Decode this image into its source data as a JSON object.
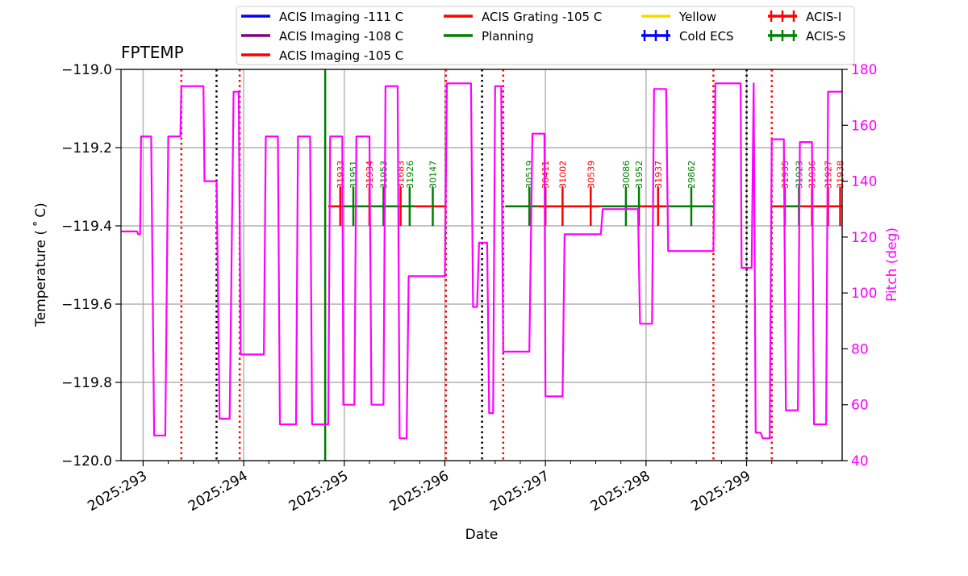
{
  "chart_data": {
    "type": "line",
    "title": "FPTEMP",
    "xlabel": "Date",
    "ylabel": "Temperature ($^\\circ$C)",
    "ylabel_display": "Temperature ( ˚ C)",
    "y2label": "Pitch (deg)",
    "xlim": [
      292.78,
      299.95
    ],
    "ylim": [
      -120.0,
      -119.0
    ],
    "y2lim": [
      40,
      180
    ],
    "x_ticks": [
      {
        "value": 293,
        "label": "2025:293"
      },
      {
        "value": 294,
        "label": "2025:294"
      },
      {
        "value": 295,
        "label": "2025:295"
      },
      {
        "value": 296,
        "label": "2025:296"
      },
      {
        "value": 297,
        "label": "2025:297"
      },
      {
        "value": 298,
        "label": "2025:298"
      },
      {
        "value": 299,
        "label": "2025:299"
      }
    ],
    "y_ticks": [
      {
        "value": -119.0,
        "label": "−119.0"
      },
      {
        "value": -119.2,
        "label": "−119.2"
      },
      {
        "value": -119.4,
        "label": "−119.4"
      },
      {
        "value": -119.6,
        "label": "−119.6"
      },
      {
        "value": -119.8,
        "label": "−119.8"
      },
      {
        "value": -120.0,
        "label": "−120.0"
      }
    ],
    "y2_ticks": [
      {
        "value": 180,
        "label": "180"
      },
      {
        "value": 160,
        "label": "160"
      },
      {
        "value": 140,
        "label": "140"
      },
      {
        "value": 120,
        "label": "120"
      },
      {
        "value": 100,
        "label": "100"
      },
      {
        "value": 80,
        "label": "80"
      },
      {
        "value": 60,
        "label": "60"
      },
      {
        "value": 40,
        "label": "40"
      }
    ],
    "grid": true,
    "legend": {
      "placement": "top-center",
      "entries": [
        {
          "label": "ACIS Imaging -111 C",
          "color": "#0000ff",
          "marker": "line"
        },
        {
          "label": "ACIS Imaging -108 C",
          "color": "#800080",
          "marker": "line"
        },
        {
          "label": "ACIS Imaging -105 C",
          "color": "#ff0000",
          "marker": "line"
        },
        {
          "label": "ACIS Grating -105 C",
          "color": "#ff0000",
          "marker": "line"
        },
        {
          "label": "Planning",
          "color": "#008000",
          "marker": "line"
        },
        {
          "label": "Yellow",
          "color": "#ffd700",
          "marker": "line"
        },
        {
          "label": "Cold ECS",
          "color": "#0000ff",
          "marker": "plus"
        },
        {
          "label": "ACIS-I",
          "color": "#ff0000",
          "marker": "plus"
        },
        {
          "label": "ACIS-S",
          "color": "#008000",
          "marker": "plus"
        }
      ]
    },
    "pitch_series": {
      "name": "Pitch (deg)",
      "color": "#ff00ff",
      "points": [
        [
          292.78,
          122
        ],
        [
          292.94,
          122
        ],
        [
          292.95,
          121
        ],
        [
          292.97,
          121
        ],
        [
          292.98,
          156
        ],
        [
          293.08,
          156
        ],
        [
          293.11,
          49
        ],
        [
          293.22,
          49
        ],
        [
          293.25,
          156
        ],
        [
          293.37,
          156
        ],
        [
          293.38,
          174
        ],
        [
          293.6,
          174
        ],
        [
          293.61,
          140
        ],
        [
          293.73,
          140
        ],
        [
          293.76,
          55
        ],
        [
          293.86,
          55
        ],
        [
          293.9,
          172
        ],
        [
          293.95,
          172
        ],
        [
          293.97,
          78
        ],
        [
          294.2,
          78
        ],
        [
          294.22,
          156
        ],
        [
          294.34,
          156
        ],
        [
          294.36,
          53
        ],
        [
          294.52,
          53
        ],
        [
          294.54,
          156
        ],
        [
          294.66,
          156
        ],
        [
          294.68,
          53
        ],
        [
          294.84,
          53
        ],
        [
          294.86,
          156
        ],
        [
          294.98,
          156
        ],
        [
          294.99,
          60
        ],
        [
          295.1,
          60
        ],
        [
          295.12,
          156
        ],
        [
          295.25,
          156
        ],
        [
          295.27,
          60
        ],
        [
          295.39,
          60
        ],
        [
          295.41,
          174
        ],
        [
          295.53,
          174
        ],
        [
          295.55,
          48
        ],
        [
          295.62,
          48
        ],
        [
          295.64,
          106
        ],
        [
          296.0,
          106
        ],
        [
          296.02,
          175
        ],
        [
          296.26,
          175
        ],
        [
          296.28,
          95
        ],
        [
          296.32,
          95
        ],
        [
          296.34,
          118
        ],
        [
          296.42,
          118
        ],
        [
          296.44,
          57
        ],
        [
          296.48,
          57
        ],
        [
          296.5,
          174
        ],
        [
          296.56,
          174
        ],
        [
          296.58,
          79
        ],
        [
          296.84,
          79
        ],
        [
          296.87,
          157
        ],
        [
          296.99,
          157
        ],
        [
          297.0,
          63
        ],
        [
          297.17,
          63
        ],
        [
          297.19,
          121
        ],
        [
          297.55,
          121
        ],
        [
          297.57,
          130
        ],
        [
          297.92,
          130
        ],
        [
          297.94,
          89
        ],
        [
          298.06,
          89
        ],
        [
          298.08,
          173
        ],
        [
          298.2,
          173
        ],
        [
          298.22,
          115
        ],
        [
          298.67,
          115
        ],
        [
          298.69,
          175
        ],
        [
          298.94,
          175
        ],
        [
          298.95,
          109
        ],
        [
          299.05,
          109
        ],
        [
          299.07,
          175
        ],
        [
          299.09,
          50
        ],
        [
          299.14,
          50
        ],
        [
          299.16,
          48
        ],
        [
          299.23,
          48
        ],
        [
          299.25,
          155
        ],
        [
          299.37,
          155
        ],
        [
          299.39,
          58
        ],
        [
          299.51,
          58
        ],
        [
          299.53,
          154
        ],
        [
          299.65,
          154
        ],
        [
          299.67,
          53
        ],
        [
          299.79,
          53
        ],
        [
          299.81,
          172
        ],
        [
          299.95,
          172
        ]
      ]
    },
    "vlines": [
      {
        "x": 293.38,
        "color": "#ff0000",
        "style": "dotted"
      },
      {
        "x": 293.73,
        "color": "#000000",
        "style": "dotted"
      },
      {
        "x": 293.96,
        "color": "#ff0000",
        "style": "dotted"
      },
      {
        "x": 294.81,
        "color": "#008000",
        "style": "solid"
      },
      {
        "x": 296.01,
        "color": "#ff0000",
        "style": "dotted"
      },
      {
        "x": 296.37,
        "color": "#000000",
        "style": "dotted"
      },
      {
        "x": 296.58,
        "color": "#ff0000",
        "style": "dotted"
      },
      {
        "x": 298.67,
        "color": "#ff0000",
        "style": "dotted"
      },
      {
        "x": 299.0,
        "color": "#000000",
        "style": "dotted"
      },
      {
        "x": 299.25,
        "color": "#ff0000",
        "style": "dotted"
      }
    ],
    "obsid_baseline": -119.35,
    "planning_segments": [
      {
        "x0": 294.84,
        "x1": 296.0,
        "color": "#ff0000"
      },
      {
        "x0": 295.0,
        "x1": 295.7,
        "color": "#008000"
      },
      {
        "x0": 296.6,
        "x1": 296.92,
        "color": "#008000"
      },
      {
        "x0": 296.92,
        "x1": 297.55,
        "color": "#ff0000"
      },
      {
        "x0": 297.55,
        "x1": 297.93,
        "color": "#008000"
      },
      {
        "x0": 297.93,
        "x1": 298.2,
        "color": "#ff0000"
      },
      {
        "x0": 298.2,
        "x1": 298.67,
        "color": "#008000"
      },
      {
        "x0": 299.25,
        "x1": 299.95,
        "color": "#ff0000"
      },
      {
        "x0": 299.38,
        "x1": 299.55,
        "color": "#008000"
      }
    ],
    "obsids": [
      {
        "label": "31933",
        "x": 294.96,
        "color": "#ff0000"
      },
      {
        "label": "31951",
        "x": 295.09,
        "color": "#008000"
      },
      {
        "label": "31934",
        "x": 295.25,
        "color": "#ff0000"
      },
      {
        "label": "31953",
        "x": 295.39,
        "color": "#008000"
      },
      {
        "label": "31683",
        "x": 295.56,
        "color": "#ff0000"
      },
      {
        "label": "31926",
        "x": 295.65,
        "color": "#008000"
      },
      {
        "label": "30147",
        "x": 295.88,
        "color": "#008000"
      },
      {
        "label": "30519",
        "x": 296.84,
        "color": "#008000"
      },
      {
        "label": "30411",
        "x": 297.0,
        "color": "#ff0000"
      },
      {
        "label": "31002",
        "x": 297.17,
        "color": "#ff0000"
      },
      {
        "label": "30539",
        "x": 297.45,
        "color": "#ff0000"
      },
      {
        "label": "30086",
        "x": 297.8,
        "color": "#008000"
      },
      {
        "label": "31952",
        "x": 297.93,
        "color": "#008000"
      },
      {
        "label": "31937",
        "x": 298.12,
        "color": "#ff0000"
      },
      {
        "label": "29862",
        "x": 298.45,
        "color": "#008000"
      },
      {
        "label": "31935",
        "x": 299.38,
        "color": "#ff0000"
      },
      {
        "label": "31923",
        "x": 299.52,
        "color": "#008000"
      },
      {
        "label": "31936",
        "x": 299.65,
        "color": "#ff0000"
      },
      {
        "label": "31927",
        "x": 299.81,
        "color": "#ff0000"
      },
      {
        "label": "31938",
        "x": 299.93,
        "color": "#ff0000"
      }
    ]
  }
}
